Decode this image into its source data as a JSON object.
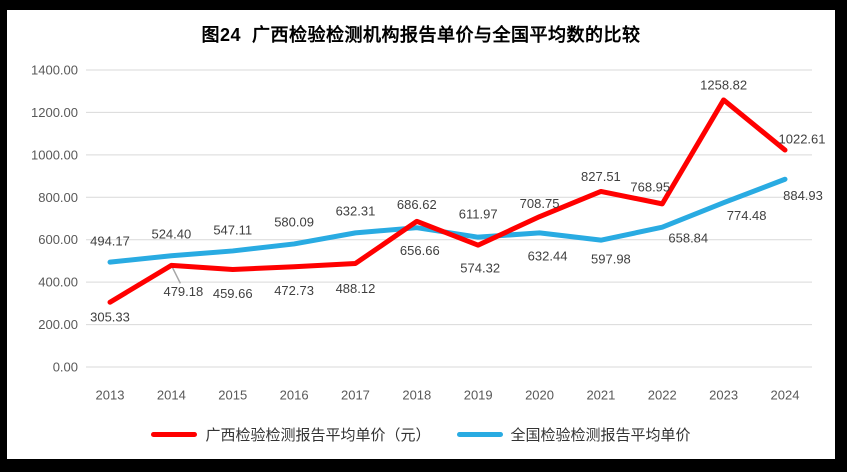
{
  "window": {
    "background": "#ffffff",
    "frame_color": "#000000"
  },
  "chart_data": {
    "type": "line",
    "title": "图24  广西检验检测机构报告单价与全国平均数的比较",
    "x_categories": [
      "2013",
      "2014",
      "2015",
      "2016",
      "2017",
      "2018",
      "2019",
      "2020",
      "2021",
      "2022",
      "2023",
      "2024"
    ],
    "ytick_labels": [
      "0.00",
      "200.00",
      "400.00",
      "600.00",
      "800.00",
      "1000.00",
      "1200.00",
      "1400.00"
    ],
    "ylim": [
      0,
      1400
    ],
    "grid": true,
    "legend_position": "bottom",
    "series": [
      {
        "name": "广西检验检测报告平均单价（元）",
        "color": "#FF0000",
        "values": [
          305.33,
          479.18,
          459.66,
          472.73,
          488.12,
          686.62,
          574.32,
          708.75,
          827.51,
          768.95,
          1258.82,
          1022.61
        ],
        "label_offsets": [
          [
            0,
            15
          ],
          [
            12,
            26
          ],
          [
            0,
            24
          ],
          [
            0,
            24
          ],
          [
            0,
            25
          ],
          [
            0,
            -17
          ],
          [
            2,
            23
          ],
          [
            0,
            -13
          ],
          [
            0,
            -15
          ],
          [
            -12,
            -17
          ],
          [
            0,
            -15
          ],
          [
            17,
            -11
          ]
        ]
      },
      {
        "name": "全国检验检测报告平均单价",
        "color": "#29ABE2",
        "values": [
          494.17,
          524.4,
          547.11,
          580.09,
          632.31,
          656.66,
          611.97,
          632.44,
          597.98,
          658.84,
          774.48,
          884.93
        ],
        "label_offsets": [
          [
            0,
            -21
          ],
          [
            0,
            -22
          ],
          [
            0,
            -21
          ],
          [
            0,
            -22
          ],
          [
            0,
            -22
          ],
          [
            3,
            23
          ],
          [
            0,
            -23
          ],
          [
            8,
            23
          ],
          [
            10,
            19
          ],
          [
            26,
            11
          ],
          [
            23,
            13
          ],
          [
            18,
            16
          ]
        ]
      }
    ],
    "leader_line": {
      "series": 0,
      "point_index": 1,
      "color": "#A6A6A6"
    }
  },
  "styles": {
    "grid_color": "#D9D9D9",
    "tick_color": "#595959",
    "data_label_color": "#404040",
    "legend_text_color": "#333333"
  }
}
